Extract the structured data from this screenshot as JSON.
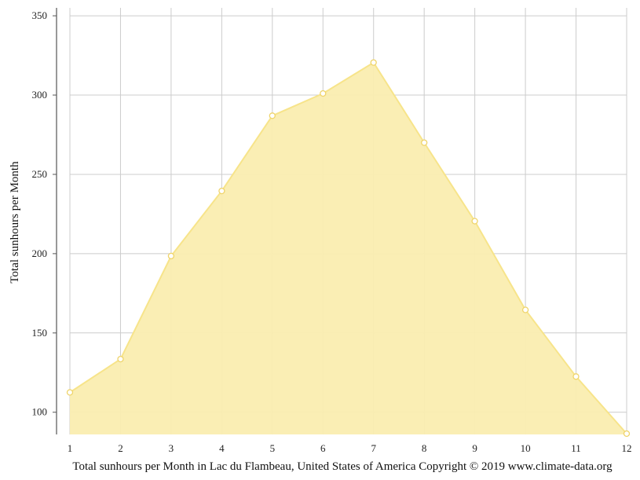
{
  "chart_data": {
    "type": "area",
    "caption": "Total sunhours per Month in Lac du Flambeau, United States of America Copyright © 2019 www.climate-data.org",
    "ylabel": "Total sunhours per Month",
    "xlabel": "",
    "x": [
      1,
      2,
      3,
      4,
      5,
      6,
      7,
      8,
      9,
      10,
      11,
      12
    ],
    "x_tick_labels": [
      "1",
      "2",
      "3",
      "4",
      "5",
      "6",
      "7",
      "8",
      "9",
      "10",
      "11",
      "12"
    ],
    "y_ticks": [
      100,
      150,
      200,
      250,
      300,
      350
    ],
    "y_tick_labels": [
      "100",
      "150",
      "200",
      "250",
      "300",
      "350"
    ],
    "ylim": [
      86,
      355
    ],
    "grid": true,
    "series": [
      {
        "values": [
          112.5,
          133.5,
          198.5,
          239.5,
          287,
          301,
          320.5,
          270,
          220.5,
          164.5,
          122.5,
          86.5
        ]
      }
    ],
    "colors": {
      "fill": "#faedb0",
      "line": "#f7e48a",
      "marker_fill": "#ffffff",
      "marker_stroke": "#efd46a",
      "grid": "#cccccc",
      "axis": "#555555"
    }
  }
}
